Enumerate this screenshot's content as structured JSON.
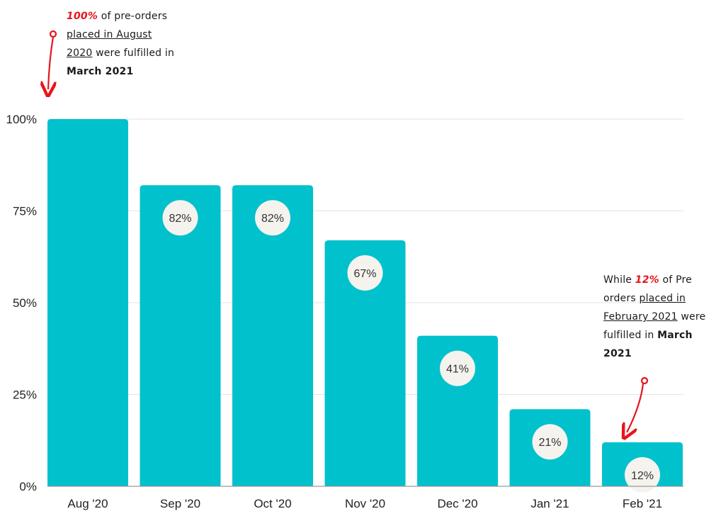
{
  "chart_data": {
    "type": "bar",
    "categories": [
      "Aug '20",
      "Sep '20",
      "Oct '20",
      "Nov '20",
      "Dec '20",
      "Jan '21",
      "Feb '21"
    ],
    "values": [
      100,
      82,
      82,
      67,
      41,
      21,
      12
    ],
    "data_labels": [
      "",
      "82%",
      "82%",
      "67%",
      "41%",
      "21%",
      "12%"
    ],
    "ylim": [
      0,
      100
    ],
    "yticks": [
      0,
      25,
      50,
      75,
      100
    ],
    "ytick_labels": [
      "0%",
      "25%",
      "50%",
      "75%",
      "100%"
    ],
    "grid": true,
    "title": "",
    "xlabel": "",
    "ylabel": "",
    "colors": {
      "bar": "#00c1cc",
      "label_bubble": "#f5f3ee",
      "gridline": "#e3e3e3",
      "axis": "#9a9a9a",
      "annotation_accent": "#e8141c"
    },
    "annotations": [
      {
        "target": "Aug '20",
        "lines": [
          [
            {
              "text": "100%",
              "style": "hl"
            },
            {
              "text": " of pre-orders",
              "style": ""
            }
          ],
          [
            {
              "text": "placed in August",
              "style": "ul"
            }
          ],
          [
            {
              "text": "2020",
              "style": "ul"
            },
            {
              "text": " were fulfilled in",
              "style": ""
            }
          ],
          [
            {
              "text": "March 2021",
              "style": "b"
            }
          ]
        ]
      },
      {
        "target": "Feb '21",
        "lines": [
          [
            {
              "text": "While ",
              "style": ""
            },
            {
              "text": "12%",
              "style": "hl"
            },
            {
              "text": " of Pre",
              "style": ""
            }
          ],
          [
            {
              "text": "orders ",
              "style": ""
            },
            {
              "text": "placed in",
              "style": "ul"
            }
          ],
          [
            {
              "text": "February 2021",
              "style": "ul"
            },
            {
              "text": " were",
              "style": ""
            }
          ],
          [
            {
              "text": "fulfilled in ",
              "style": ""
            },
            {
              "text": "March",
              "style": "b"
            }
          ],
          [
            {
              "text": "2021",
              "style": "b"
            }
          ]
        ]
      }
    ]
  }
}
